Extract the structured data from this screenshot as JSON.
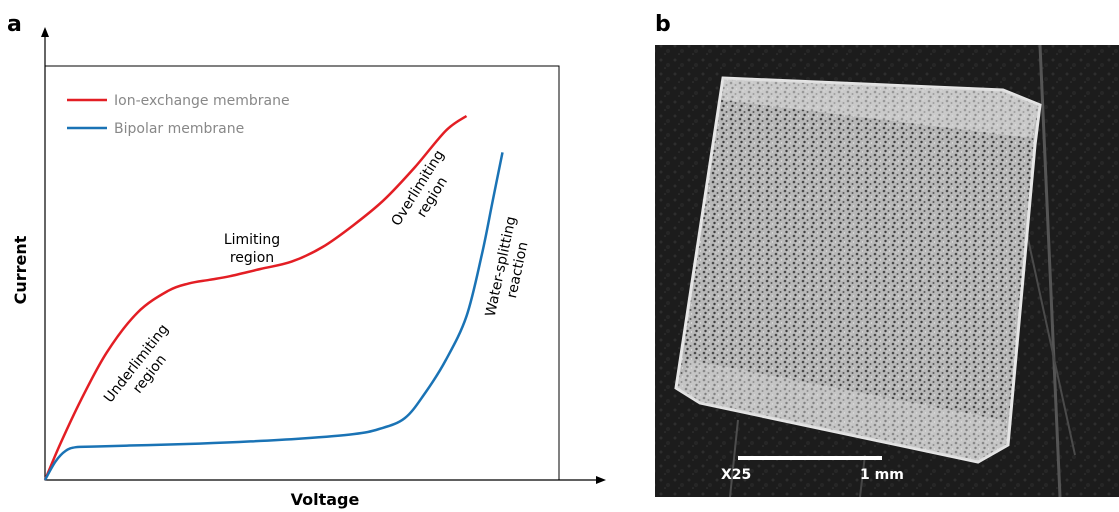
{
  "panels": {
    "a": "a",
    "b": "b"
  },
  "chart_data": {
    "type": "line",
    "title": "",
    "xlabel": "Voltage",
    "ylabel": "Current",
    "xlim": [
      0,
      100
    ],
    "ylim": [
      0,
      100
    ],
    "grid": false,
    "legend_position": "top-left",
    "series": [
      {
        "name": "Ion-exchange membrane",
        "color": "#e31e24",
        "x": [
          0,
          3,
          7,
          12,
          18,
          24,
          28,
          32,
          36,
          42,
          48,
          54,
          60,
          66,
          72,
          78,
          82
        ],
        "y": [
          0,
          10,
          22,
          35,
          46,
          52,
          54,
          55,
          56,
          58,
          60,
          64,
          70,
          77,
          86,
          96,
          100
        ]
      },
      {
        "name": "Bipolar membrane",
        "color": "#1a73b5",
        "x": [
          0,
          2,
          4,
          6,
          10,
          20,
          30,
          40,
          50,
          60,
          65,
          70,
          74,
          78,
          82,
          85,
          87,
          89
        ],
        "y": [
          0,
          5,
          8,
          9,
          9.2,
          9.6,
          10,
          10.6,
          11.4,
          12.6,
          14,
          17,
          24,
          33,
          45,
          62,
          76,
          90
        ]
      }
    ],
    "annotations": [
      {
        "id": "underlimiting",
        "lines": [
          "Underlimiting",
          "region"
        ]
      },
      {
        "id": "limiting",
        "lines": [
          "Limiting",
          "region"
        ]
      },
      {
        "id": "overlimiting",
        "lines": [
          "Overlimiting",
          "region"
        ]
      },
      {
        "id": "water",
        "lines": [
          "Water-splitting",
          "reaction"
        ]
      }
    ]
  },
  "micrograph": {
    "magnification": "X25",
    "scale_bar": "1 mm"
  }
}
